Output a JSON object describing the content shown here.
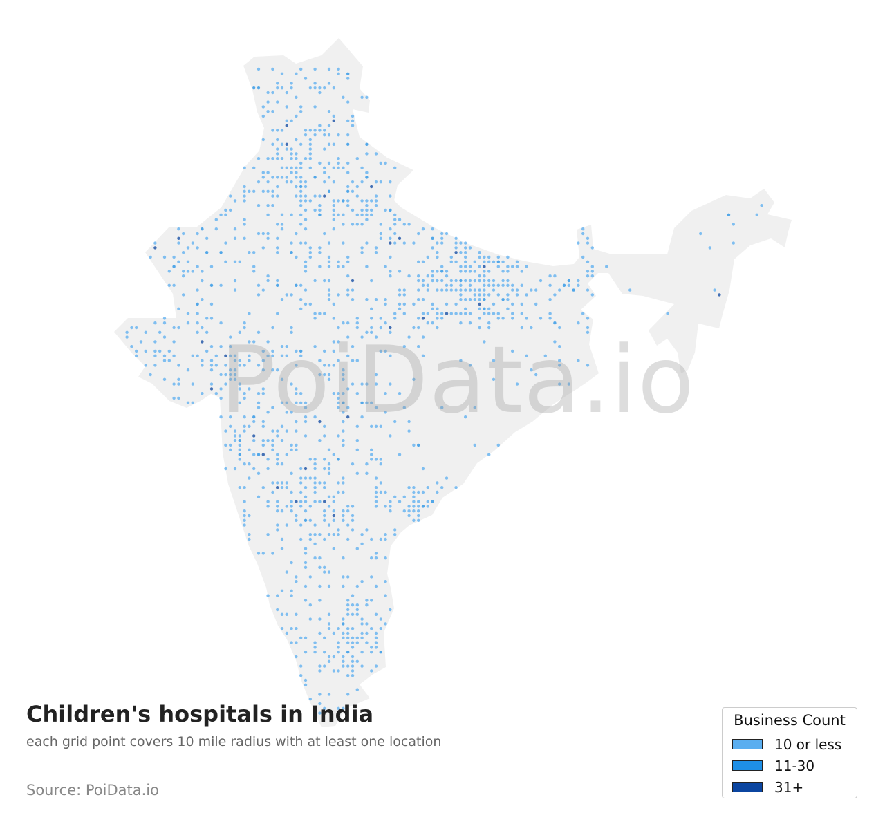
{
  "map": {
    "title": "Children's hospitals in India",
    "subtitle": "each grid point covers 10 mile radius with at least one location",
    "source": "Source: PoiData.io",
    "watermark": "PoiData.io",
    "land_color": "#f0f0f0",
    "legend": {
      "title": "Business Count",
      "items": [
        {
          "label": "10 or less",
          "color": "#5aaef0"
        },
        {
          "label": "11-30",
          "color": "#1e8fe6"
        },
        {
          "label": "31+",
          "color": "#0b45a0"
        }
      ]
    }
  }
}
